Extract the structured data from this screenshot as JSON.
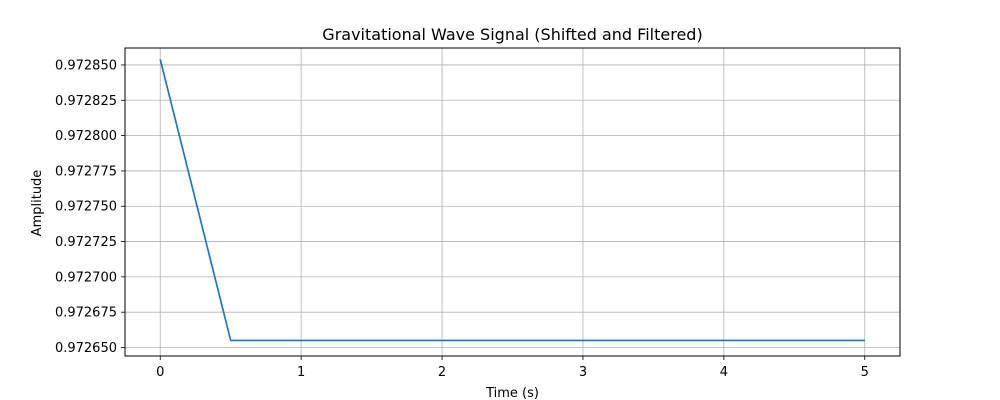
{
  "chart_data": {
    "type": "line",
    "title": "Gravitational Wave Signal (Shifted and Filtered)",
    "xlabel": "Time (s)",
    "ylabel": "Amplitude",
    "xlim": [
      -0.25,
      5.25
    ],
    "ylim": [
      0.972644,
      0.972862
    ],
    "xticks": [
      0,
      1,
      2,
      3,
      4,
      5
    ],
    "xtick_labels": [
      "0",
      "1",
      "2",
      "3",
      "4",
      "5"
    ],
    "yticks": [
      0.97265,
      0.972675,
      0.9727,
      0.972725,
      0.97275,
      0.972775,
      0.9728,
      0.972825,
      0.97285
    ],
    "ytick_labels": [
      "0.972650",
      "0.972675",
      "0.972700",
      "0.972725",
      "0.972750",
      "0.972775",
      "0.972800",
      "0.972825",
      "0.972850"
    ],
    "grid": true,
    "series": [
      {
        "color": "#1f77b4",
        "x": [
          0,
          0.5,
          5
        ],
        "y": [
          0.972854,
          0.972655,
          0.972655
        ]
      }
    ]
  }
}
